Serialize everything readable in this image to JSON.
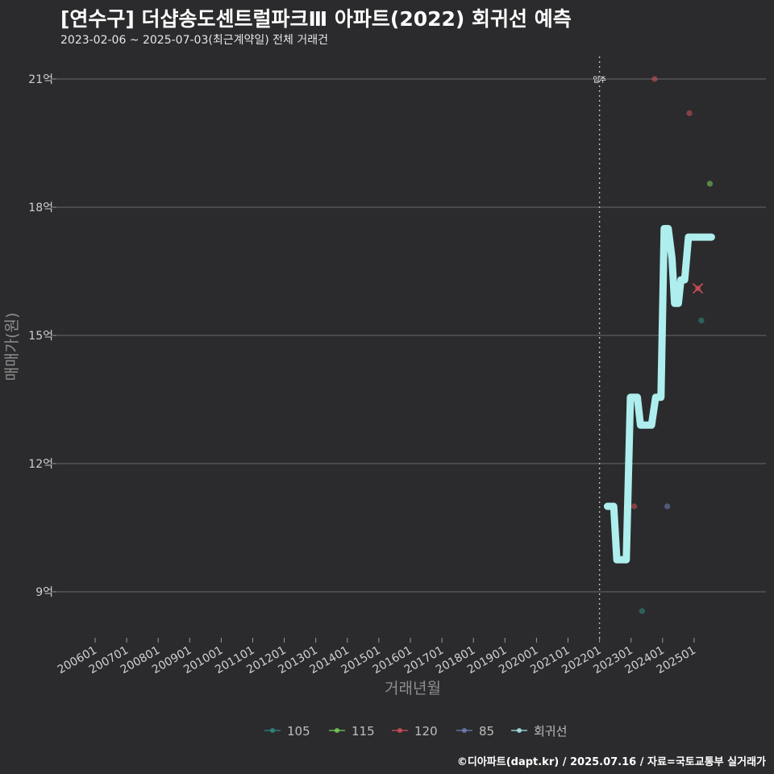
{
  "title": "[연수구] 더샵송도센트럴파크Ⅲ 아파트(2022) 회귀선 예측",
  "subtitle": "2023-02-06 ~ 2025-07-03(최근계약일) 전체 거래건",
  "credit": "©디아파트(dapt.kr) / 2025.07.16 / 자료=국토교통부 실거래가",
  "chart_data": {
    "type": "line",
    "xlabel": "거래년월",
    "ylabel": "매매가(원)",
    "x_range": [
      2005.5,
      2026.0
    ],
    "ylim": [
      8.1,
      21.5
    ],
    "x_ticks": [
      {
        "label": "200601",
        "x": 2006.0
      },
      {
        "label": "200701",
        "x": 2007.0
      },
      {
        "label": "200801",
        "x": 2008.0
      },
      {
        "label": "200901",
        "x": 2009.0
      },
      {
        "label": "201001",
        "x": 2010.0
      },
      {
        "label": "201101",
        "x": 2011.0
      },
      {
        "label": "201201",
        "x": 2012.0
      },
      {
        "label": "201301",
        "x": 2013.0
      },
      {
        "label": "201401",
        "x": 2014.0
      },
      {
        "label": "201501",
        "x": 2015.0
      },
      {
        "label": "201601",
        "x": 2016.0
      },
      {
        "label": "201701",
        "x": 2017.0
      },
      {
        "label": "201801",
        "x": 2018.0
      },
      {
        "label": "201901",
        "x": 2019.0
      },
      {
        "label": "202001",
        "x": 2020.0
      },
      {
        "label": "202101",
        "x": 2021.0
      },
      {
        "label": "202201",
        "x": 2022.0
      },
      {
        "label": "202301",
        "x": 2023.0
      },
      {
        "label": "202401",
        "x": 2024.0
      },
      {
        "label": "202501",
        "x": 2025.0
      }
    ],
    "y_ticks": [
      {
        "label": "9억",
        "value": 9
      },
      {
        "label": "12억",
        "value": 12
      },
      {
        "label": "15억",
        "value": 15
      },
      {
        "label": "18억",
        "value": 18
      },
      {
        "label": "21억",
        "value": 21
      }
    ],
    "vline": {
      "x": 2022.0,
      "label": "입주"
    },
    "series": [
      {
        "name": "105",
        "color": "#2f8f83",
        "points": [
          {
            "x": 2023.35,
            "y": 8.55
          },
          {
            "x": 2025.23,
            "y": 15.35
          }
        ]
      },
      {
        "name": "115",
        "color": "#7bd45a",
        "points": [
          {
            "x": 2025.5,
            "y": 18.55
          }
        ]
      },
      {
        "name": "120",
        "color": "#d9505a",
        "points": [
          {
            "x": 2023.1,
            "y": 11.0
          },
          {
            "x": 2023.75,
            "y": 21.0
          },
          {
            "x": 2024.85,
            "y": 20.2
          },
          {
            "x": 2025.12,
            "y": 16.1
          }
        ]
      },
      {
        "name": "85",
        "color": "#6f83b8",
        "points": [
          {
            "x": 2024.15,
            "y": 11.0
          }
        ]
      }
    ],
    "regression": {
      "name": "회귀선",
      "color": "#aeeeee",
      "points": [
        {
          "x": 2022.25,
          "y": 11.0
        },
        {
          "x": 2022.45,
          "y": 11.0
        },
        {
          "x": 2022.55,
          "y": 9.75
        },
        {
          "x": 2022.85,
          "y": 9.75
        },
        {
          "x": 2022.98,
          "y": 13.55
        },
        {
          "x": 2023.2,
          "y": 13.55
        },
        {
          "x": 2023.3,
          "y": 12.9
        },
        {
          "x": 2023.65,
          "y": 12.9
        },
        {
          "x": 2023.78,
          "y": 13.55
        },
        {
          "x": 2023.95,
          "y": 13.55
        },
        {
          "x": 2024.05,
          "y": 17.5
        },
        {
          "x": 2024.18,
          "y": 17.5
        },
        {
          "x": 2024.3,
          "y": 16.8
        },
        {
          "x": 2024.38,
          "y": 15.75
        },
        {
          "x": 2024.5,
          "y": 15.75
        },
        {
          "x": 2024.58,
          "y": 16.3
        },
        {
          "x": 2024.7,
          "y": 16.3
        },
        {
          "x": 2024.82,
          "y": 17.3
        },
        {
          "x": 2025.55,
          "y": 17.3
        }
      ]
    },
    "legend": {
      "position": "bottom",
      "items": [
        "105",
        "115",
        "120",
        "85",
        "회귀선"
      ]
    }
  }
}
